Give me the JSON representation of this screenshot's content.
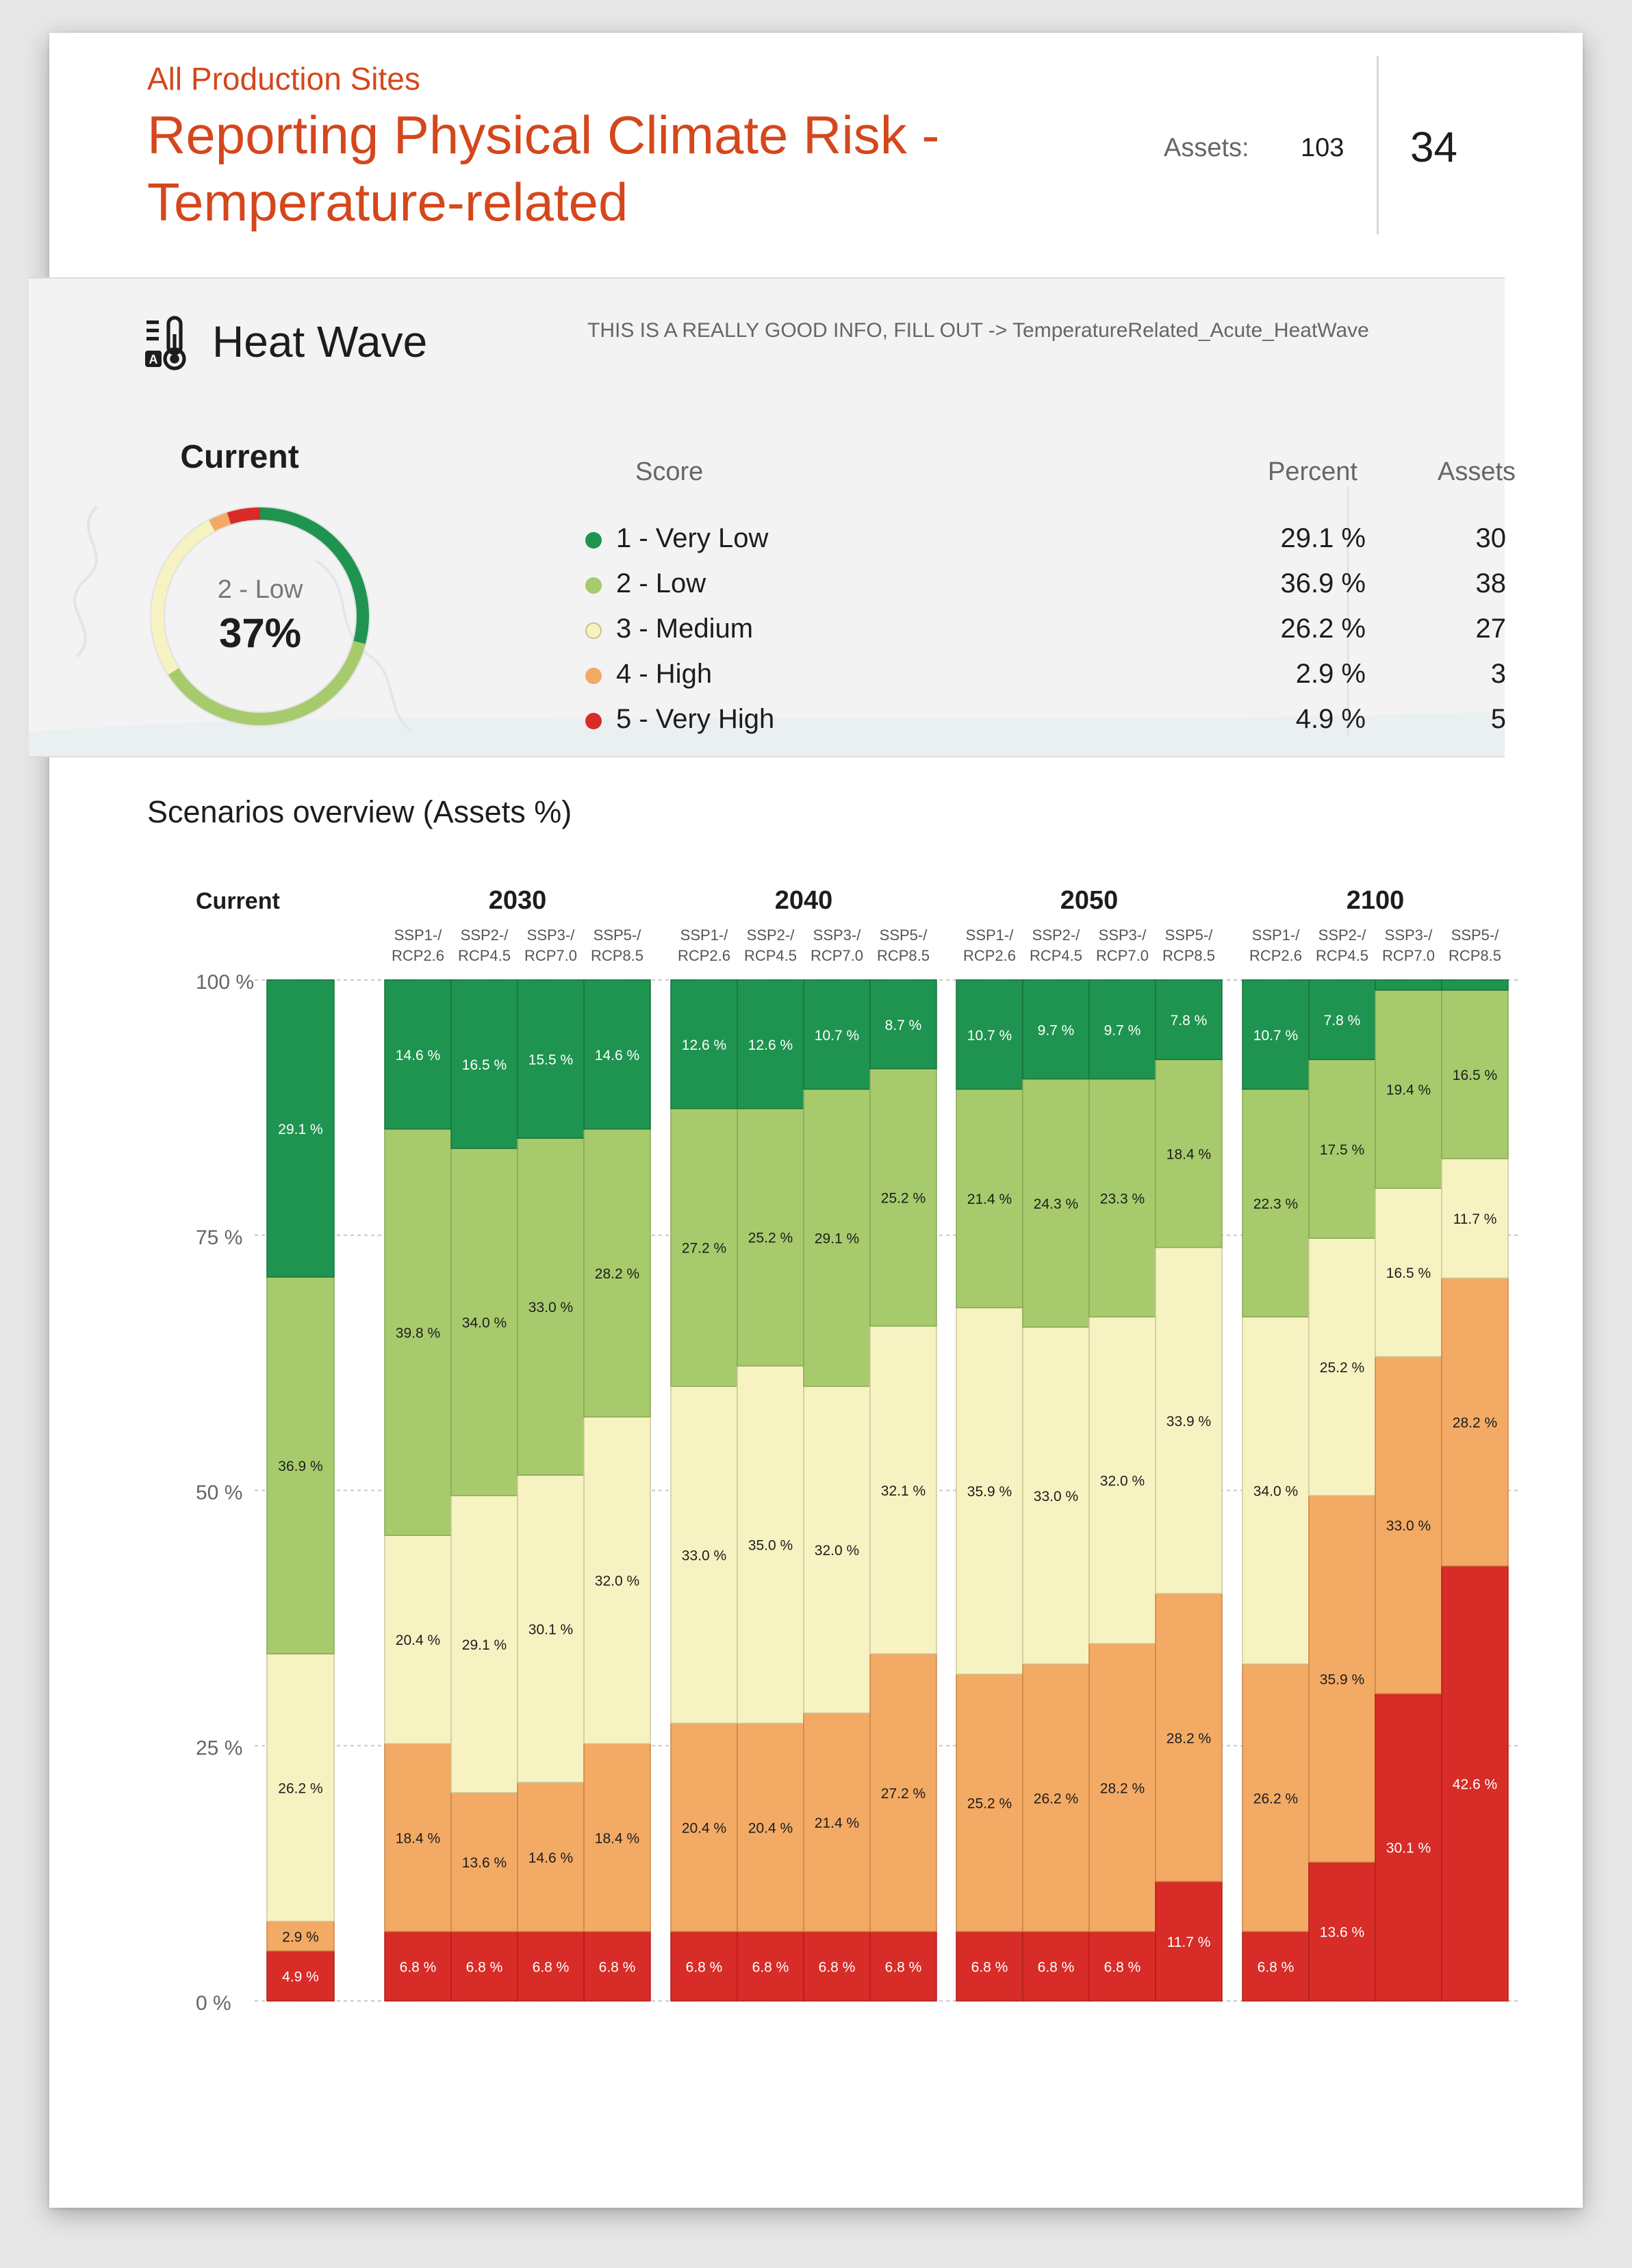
{
  "header": {
    "subtitle": "All Production Sites",
    "title": "Reporting Physical Climate Risk - Temperature-related",
    "assets_label": "Assets:",
    "assets_value": "103",
    "page_number": "34"
  },
  "hazard": {
    "name": "Heat Wave",
    "icon": "thermometer-icon",
    "info": "THIS IS A REALLY GOOD INFO, FILL OUT -> TemperatureRelated_Acute_HeatWave"
  },
  "current": {
    "title": "Current",
    "label": "2 - Low",
    "value": "37%"
  },
  "legend": {
    "headers": {
      "score": "Score",
      "percent": "Percent",
      "assets": "Assets"
    },
    "rows": [
      {
        "label": "1 - Very Low",
        "percent": "29.1 %",
        "assets": "30",
        "color": "#1e9450"
      },
      {
        "label": "2 - Low",
        "percent": "36.9 %",
        "assets": "38",
        "color": "#a7cb6c"
      },
      {
        "label": "3 - Medium",
        "percent": "26.2 %",
        "assets": "27",
        "color": "#f7f2c2"
      },
      {
        "label": "4 - High",
        "percent": "2.9 %",
        "assets": "3",
        "color": "#f3aa65"
      },
      {
        "label": "5 - Very High",
        "percent": "4.9 %",
        "assets": "5",
        "color": "#d72c27"
      }
    ]
  },
  "section_title": "Scenarios overview (Assets %)",
  "chart_data": {
    "type": "bar",
    "stacked": true,
    "title": "Scenarios overview (Assets %)",
    "ylim": [
      0,
      100
    ],
    "yticks": [
      "0 %",
      "25 %",
      "50 %",
      "75 %",
      "100 %"
    ],
    "segment_order": [
      "5 - Very High",
      "4 - High",
      "3 - Medium",
      "2 - Low",
      "1 - Very Low"
    ],
    "colors": [
      "#d72c27",
      "#f3aa65",
      "#f7f2c2",
      "#a7cb6c",
      "#1e9450"
    ],
    "groups": [
      {
        "name": "Current",
        "bars": [
          {
            "scenario": "",
            "values": [
              4.9,
              2.9,
              26.2,
              36.9,
              29.1
            ]
          }
        ]
      },
      {
        "name": "2030",
        "bars": [
          {
            "scenario": "SSP1-/ RCP2.6",
            "values": [
              6.8,
              18.4,
              20.4,
              39.8,
              14.6
            ]
          },
          {
            "scenario": "SSP2-/ RCP4.5",
            "values": [
              6.8,
              13.6,
              29.1,
              34.0,
              16.5
            ]
          },
          {
            "scenario": "SSP3-/ RCP7.0",
            "values": [
              6.8,
              14.6,
              30.1,
              33.0,
              15.5
            ]
          },
          {
            "scenario": "SSP5-/ RCP8.5",
            "values": [
              6.8,
              18.4,
              32.0,
              28.2,
              14.6
            ]
          }
        ]
      },
      {
        "name": "2040",
        "bars": [
          {
            "scenario": "SSP1-/ RCP2.6",
            "values": [
              6.8,
              20.4,
              33.0,
              27.2,
              12.6
            ]
          },
          {
            "scenario": "SSP2-/ RCP4.5",
            "values": [
              6.8,
              20.4,
              35.0,
              25.2,
              12.6
            ]
          },
          {
            "scenario": "SSP3-/ RCP7.0",
            "values": [
              6.8,
              21.4,
              32.0,
              29.1,
              10.7
            ]
          },
          {
            "scenario": "SSP5-/ RCP8.5",
            "values": [
              6.8,
              27.2,
              32.1,
              25.2,
              8.7
            ]
          }
        ]
      },
      {
        "name": "2050",
        "bars": [
          {
            "scenario": "SSP1-/ RCP2.6",
            "values": [
              6.8,
              25.2,
              35.9,
              21.4,
              10.7
            ]
          },
          {
            "scenario": "SSP2-/ RCP4.5",
            "values": [
              6.8,
              26.2,
              33.0,
              24.3,
              9.7
            ]
          },
          {
            "scenario": "SSP3-/ RCP7.0",
            "values": [
              6.8,
              28.2,
              32.0,
              23.3,
              9.7
            ]
          },
          {
            "scenario": "SSP5-/ RCP8.5",
            "values": [
              11.7,
              28.2,
              33.9,
              18.4,
              7.8
            ]
          }
        ]
      },
      {
        "name": "2100",
        "bars": [
          {
            "scenario": "SSP1-/ RCP2.6",
            "values": [
              6.8,
              26.2,
              34.0,
              22.3,
              10.7
            ]
          },
          {
            "scenario": "SSP2-/ RCP4.5",
            "values": [
              13.6,
              35.9,
              25.2,
              17.5,
              7.8
            ]
          },
          {
            "scenario": "SSP3-/ RCP7.0",
            "values": [
              30.1,
              33.0,
              16.5,
              19.4,
              1.0
            ]
          },
          {
            "scenario": "SSP5-/ RCP8.5",
            "values": [
              42.6,
              28.2,
              11.7,
              16.5,
              1.0
            ]
          }
        ]
      }
    ]
  }
}
